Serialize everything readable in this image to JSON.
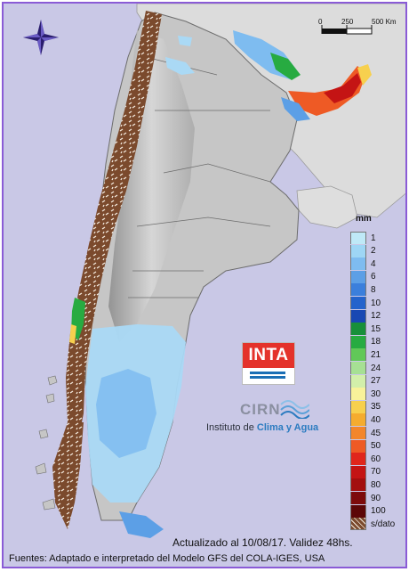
{
  "scale": {
    "ticks": [
      "0",
      "250",
      "500 Km"
    ]
  },
  "legend": {
    "unit": "mm",
    "items": [
      {
        "label": "1",
        "color": "#bfe9f7"
      },
      {
        "label": "2",
        "color": "#9ed6f5"
      },
      {
        "label": "4",
        "color": "#7ebcf0"
      },
      {
        "label": "6",
        "color": "#5c9fe6"
      },
      {
        "label": "8",
        "color": "#3b7fdc"
      },
      {
        "label": "10",
        "color": "#2463cc"
      },
      {
        "label": "12",
        "color": "#1848b3"
      },
      {
        "label": "15",
        "color": "#17903a"
      },
      {
        "label": "18",
        "color": "#27ab41"
      },
      {
        "label": "21",
        "color": "#61c858"
      },
      {
        "label": "24",
        "color": "#a6e094"
      },
      {
        "label": "27",
        "color": "#d2efaa"
      },
      {
        "label": "30",
        "color": "#f8f29a"
      },
      {
        "label": "35",
        "color": "#f7d04e"
      },
      {
        "label": "40",
        "color": "#f5ac2f"
      },
      {
        "label": "45",
        "color": "#f3862b"
      },
      {
        "label": "50",
        "color": "#ee5a25"
      },
      {
        "label": "60",
        "color": "#e0261c"
      },
      {
        "label": "70",
        "color": "#c41414"
      },
      {
        "label": "80",
        "color": "#a30f0f"
      },
      {
        "label": "90",
        "color": "#7d0b0b"
      },
      {
        "label": "100",
        "color": "#5c0707"
      },
      {
        "label": "s/dato",
        "color": "#7b4a2d"
      }
    ]
  },
  "logos": {
    "inta": "INTA",
    "cirn": "CIRN",
    "institute_prefix": "Instituto de",
    "institute_highlight": "Clima y Agua"
  },
  "footer": {
    "updated": "Actualizado al 10/08/17. Validez 48hs.",
    "sources": "Fuentes: Adaptado e interpretado del Modelo GFS del COLA-IGES, USA"
  }
}
